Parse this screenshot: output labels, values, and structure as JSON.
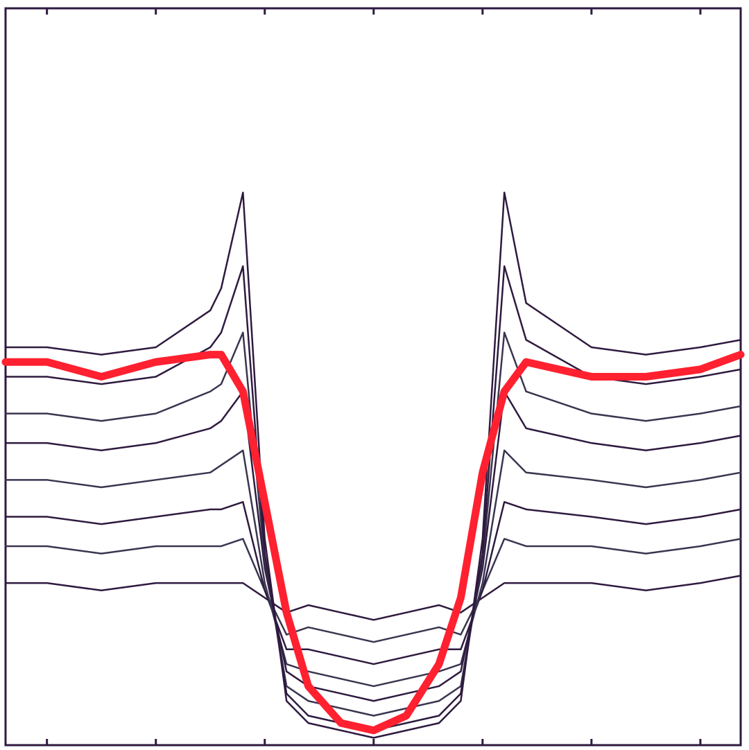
{
  "chart_data": {
    "type": "line",
    "x": [
      -0.38,
      0,
      0.5,
      1.0,
      1.5,
      1.6,
      1.8,
      2.0,
      2.2,
      2.4,
      2.7,
      3.0,
      3.3,
      3.6,
      3.8,
      4.0,
      4.2,
      4.4,
      5.0,
      5.5,
      6.0,
      6.37
    ],
    "xlim": [
      -0.38,
      6.37
    ],
    "xticks": [
      0,
      1,
      2,
      3,
      4,
      5,
      6
    ],
    "ylim": [
      0,
      1
    ],
    "series": [
      {
        "color": "#2e1a3f",
        "values": [
          0.22,
          0.22,
          0.21,
          0.22,
          0.22,
          0.22,
          0.22,
          0.2,
          0.18,
          0.19,
          0.18,
          0.17,
          0.18,
          0.19,
          0.18,
          0.2,
          0.22,
          0.22,
          0.22,
          0.21,
          0.22,
          0.23
        ]
      },
      {
        "color": "#3a3550",
        "values": [
          0.27,
          0.27,
          0.26,
          0.27,
          0.27,
          0.27,
          0.28,
          0.21,
          0.15,
          0.16,
          0.15,
          0.14,
          0.15,
          0.16,
          0.15,
          0.21,
          0.28,
          0.27,
          0.27,
          0.26,
          0.27,
          0.28
        ]
      },
      {
        "color": "#2e1a3f",
        "values": [
          0.31,
          0.31,
          0.3,
          0.31,
          0.32,
          0.32,
          0.33,
          0.21,
          0.13,
          0.13,
          0.12,
          0.11,
          0.12,
          0.13,
          0.13,
          0.21,
          0.33,
          0.32,
          0.31,
          0.3,
          0.31,
          0.32
        ]
      },
      {
        "color": "#3a3550",
        "values": [
          0.36,
          0.36,
          0.35,
          0.36,
          0.37,
          0.38,
          0.4,
          0.22,
          0.11,
          0.1,
          0.09,
          0.08,
          0.09,
          0.1,
          0.11,
          0.22,
          0.4,
          0.37,
          0.36,
          0.35,
          0.36,
          0.37
        ]
      },
      {
        "color": "#2e1a3f",
        "values": [
          0.41,
          0.41,
          0.4,
          0.41,
          0.43,
          0.44,
          0.48,
          0.24,
          0.1,
          0.08,
          0.07,
          0.06,
          0.07,
          0.08,
          0.1,
          0.24,
          0.48,
          0.43,
          0.41,
          0.4,
          0.41,
          0.42
        ]
      },
      {
        "color": "#3a3550",
        "values": [
          0.45,
          0.45,
          0.44,
          0.45,
          0.48,
          0.49,
          0.56,
          0.25,
          0.08,
          0.06,
          0.05,
          0.04,
          0.05,
          0.06,
          0.08,
          0.25,
          0.56,
          0.48,
          0.45,
          0.44,
          0.45,
          0.46
        ]
      },
      {
        "color": "#2e1a3f",
        "values": [
          0.5,
          0.5,
          0.49,
          0.5,
          0.54,
          0.56,
          0.65,
          0.26,
          0.07,
          0.04,
          0.03,
          0.02,
          0.03,
          0.04,
          0.07,
          0.26,
          0.65,
          0.55,
          0.5,
          0.49,
          0.5,
          0.51
        ]
      },
      {
        "color": "#2e1a3f",
        "values": [
          0.54,
          0.54,
          0.53,
          0.54,
          0.59,
          0.62,
          0.75,
          0.28,
          0.06,
          0.03,
          0.02,
          0.01,
          0.02,
          0.03,
          0.06,
          0.28,
          0.75,
          0.6,
          0.54,
          0.53,
          0.54,
          0.55
        ]
      },
      {
        "color": "#ff2030",
        "values": [
          0.52,
          0.52,
          0.5,
          0.52,
          0.53,
          0.53,
          0.48,
          0.33,
          0.18,
          0.08,
          0.03,
          0.02,
          0.04,
          0.11,
          0.2,
          0.37,
          0.48,
          0.52,
          0.5,
          0.5,
          0.51,
          0.53
        ]
      }
    ]
  }
}
